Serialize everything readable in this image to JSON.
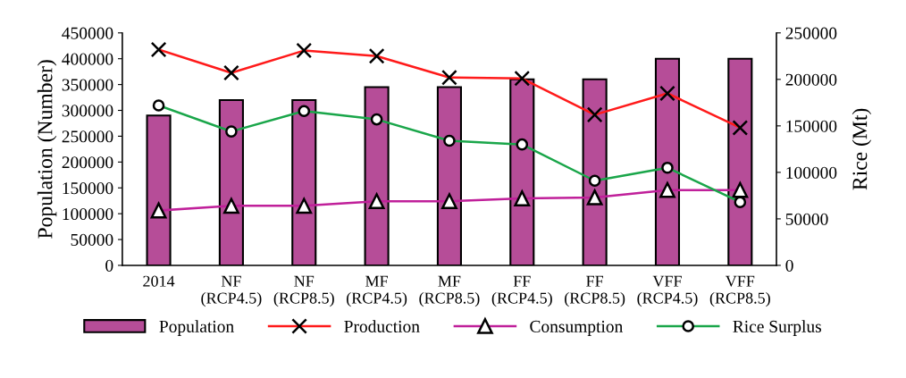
{
  "chart_data": {
    "type": "bar",
    "ylabel": "Population (Number)",
    "y2label": "Rice (Mt)",
    "categories": [
      "2014",
      "NF\n(RCP4.5)",
      "NF\n(RCP8.5)",
      "MF\n(RCP4.5)",
      "MF\n(RCP8.5)",
      "FF\n(RCP4.5)",
      "FF\n(RCP8.5)",
      "VFF\n(RCP4.5)",
      "VFF\n(RCP8.5)"
    ],
    "series": [
      {
        "name": "Population",
        "color": "#b64d98",
        "values": [
          290000,
          320000,
          320000,
          345000,
          345000,
          360000,
          360000,
          400000,
          400000
        ]
      },
      {
        "name": "Production",
        "type": "line",
        "axis": "y2",
        "color": "#ff1a1a",
        "marker": "cross",
        "values": [
          232000,
          207000,
          231000,
          225000,
          202000,
          201000,
          162000,
          185000,
          148000
        ]
      },
      {
        "name": "Consumption",
        "type": "line",
        "axis": "y2",
        "color": "#c0209a",
        "marker": "triangle",
        "values": [
          59000,
          64000,
          64000,
          69000,
          69000,
          72000,
          73000,
          81000,
          81000
        ]
      },
      {
        "name": "Rice Surplus",
        "type": "line",
        "axis": "y2",
        "color": "#1aa64a",
        "marker": "circle",
        "values": [
          172000,
          144000,
          166000,
          157000,
          134000,
          130000,
          91000,
          105000,
          68000
        ]
      }
    ],
    "ylim": [
      0,
      450000
    ],
    "yticks": [
      0,
      50000,
      100000,
      150000,
      200000,
      250000,
      300000,
      350000,
      400000,
      450000
    ],
    "y2lim": [
      0,
      250000
    ],
    "y2ticks": [
      0,
      50000,
      100000,
      150000,
      200000,
      250000
    ],
    "grid": false,
    "legend": "bottom"
  }
}
